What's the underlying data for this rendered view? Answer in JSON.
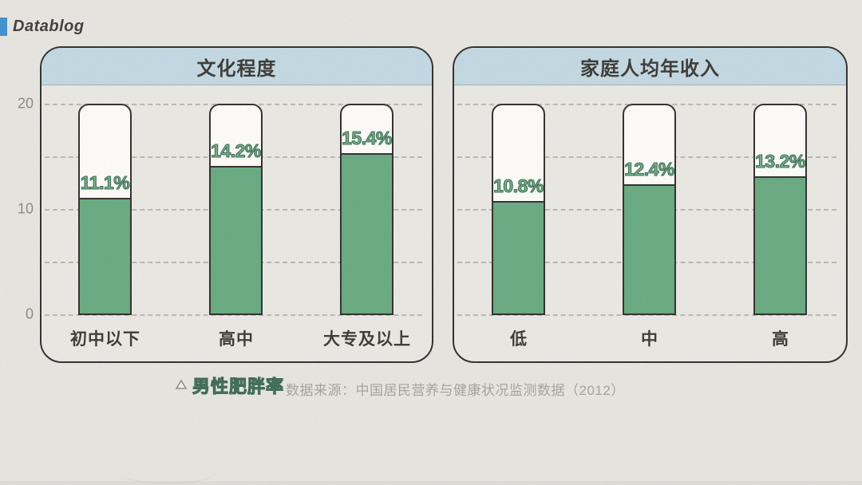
{
  "logo": {
    "text": "Datablog"
  },
  "colors": {
    "background": "#e7e5e0",
    "logo_accent_blue": "#3e8fcc",
    "panel_header_blue": "#c2d8e2",
    "panel_border": "#2e2d2b",
    "bar_fill_green": "#67a97f",
    "value_label_green": "#55996f",
    "dark_text": "#3a3833",
    "axis_tick_gray": "#8b8880",
    "source_text_gray": "#a6a29a"
  },
  "y_axis": {
    "tick_labels": [
      "20",
      "10",
      "0"
    ]
  },
  "chart_data": [
    {
      "type": "bar",
      "title": "文化程度",
      "categories": [
        "初中以下",
        "高中",
        "大专及以上"
      ],
      "values": [
        11.1,
        14.2,
        15.4
      ],
      "value_labels": [
        "11.1%",
        "14.2%",
        "15.4%"
      ],
      "series_name": "男性肥胖率",
      "ylabel": "",
      "ylim": [
        0,
        20
      ],
      "gridline_values": [
        0,
        5,
        10,
        15,
        20
      ],
      "grid": "horizontal-dashed",
      "bar_style": "green fill inside white outlined capsule container representing 0-20%"
    },
    {
      "type": "bar",
      "title": "家庭人均年收入",
      "categories": [
        "低",
        "中",
        "高"
      ],
      "values": [
        10.8,
        12.4,
        13.2
      ],
      "value_labels": [
        "10.8%",
        "12.4%",
        "13.2%"
      ],
      "series_name": "男性肥胖率",
      "ylabel": "",
      "ylim": [
        0,
        20
      ],
      "gridline_values": [
        0,
        5,
        10,
        15,
        20
      ],
      "grid": "horizontal-dashed",
      "bar_style": "green fill inside white outlined capsule container representing 0-20%"
    }
  ],
  "legend": {
    "label": "男性肥胖率"
  },
  "source": {
    "text": "数据来源：中国居民营养与健康状况监测数据（2012）"
  }
}
